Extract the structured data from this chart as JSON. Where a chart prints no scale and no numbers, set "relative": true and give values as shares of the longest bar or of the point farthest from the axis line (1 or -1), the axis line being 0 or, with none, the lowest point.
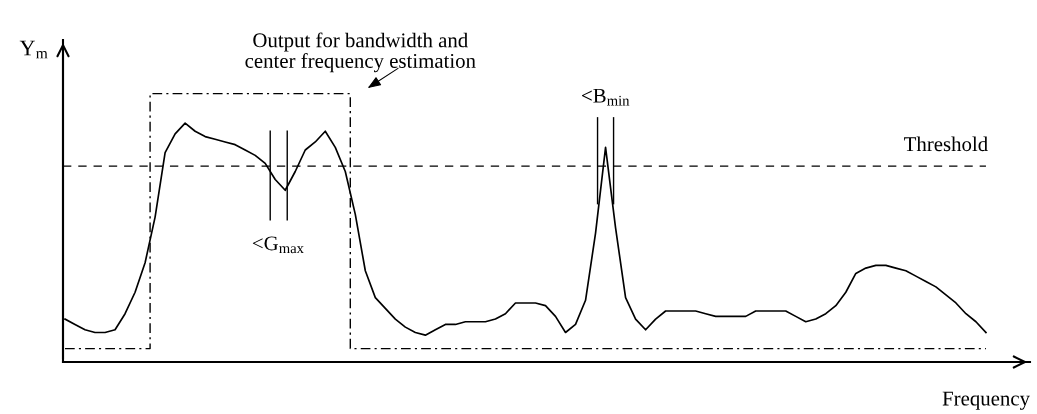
{
  "chart_data": {
    "type": "line",
    "relative": true,
    "ylabel": "Y$_{m}$",
    "xlabel": "Frequency",
    "marker": "none",
    "categories": [
      null,
      null,
      null,
      null,
      null,
      null,
      null,
      null,
      null,
      null,
      null,
      null,
      null,
      null,
      null,
      null,
      null,
      null,
      null,
      null,
      null,
      null,
      null,
      null,
      null,
      null,
      null,
      null,
      null,
      null,
      null,
      null,
      null,
      null,
      null,
      null,
      null,
      null,
      null,
      null,
      null,
      null,
      null,
      null,
      null,
      null,
      null,
      null,
      null,
      null,
      null,
      null,
      null,
      null,
      null,
      null,
      null,
      null,
      null,
      null,
      null,
      null,
      null,
      null,
      null,
      null,
      null,
      null,
      null,
      null,
      null,
      null,
      null,
      null,
      null,
      null,
      null,
      null,
      null,
      null,
      null,
      null,
      null,
      null,
      null,
      null,
      null,
      null,
      null,
      null,
      null,
      null,
      null
    ],
    "series": [
      {
        "color": "#000000",
        "line_style": "solid",
        "values": [
          0.16,
          0.14,
          0.12,
          0.11,
          0.11,
          0.12,
          0.18,
          0.26,
          0.37,
          0.54,
          0.78,
          0.85,
          0.89,
          0.86,
          0.84,
          0.83,
          0.82,
          0.81,
          0.79,
          0.77,
          0.74,
          0.68,
          0.64,
          0.71,
          0.79,
          0.82,
          0.86,
          0.8,
          0.71,
          0.55,
          0.34,
          0.24,
          0.2,
          0.16,
          0.13,
          0.11,
          0.1,
          0.12,
          0.14,
          0.14,
          0.15,
          0.15,
          0.15,
          0.16,
          0.18,
          0.22,
          0.22,
          0.22,
          0.21,
          0.17,
          0.11,
          0.14,
          0.23,
          0.48,
          0.8,
          0.5,
          0.24,
          0.16,
          0.12,
          0.16,
          0.19,
          0.19,
          0.19,
          0.19,
          0.18,
          0.17,
          0.17,
          0.17,
          0.17,
          0.19,
          0.19,
          0.19,
          0.19,
          0.17,
          0.15,
          0.16,
          0.18,
          0.21,
          0.26,
          0.33,
          0.35,
          0.36,
          0.36,
          0.35,
          0.34,
          0.32,
          0.3,
          0.28,
          0.25,
          0.22,
          0.18,
          0.15,
          0.11
        ]
      },
      {
        "type": "step",
        "color": "#000000",
        "line_style": "dashdot",
        "values": [
          0.05,
          0.05,
          0.05,
          0.05,
          0.05,
          0.05,
          0.05,
          0.05,
          0.05,
          1,
          1,
          1,
          1,
          1,
          1,
          1,
          1,
          1,
          1,
          1,
          1,
          1,
          1,
          1,
          1,
          1,
          1,
          1,
          1,
          0.05,
          0.05,
          0.05,
          0.05,
          0.05,
          0.05,
          0.05,
          0.05,
          0.05,
          0.05,
          0.05,
          0.05,
          0.05,
          0.05,
          0.05,
          0.05,
          0.05,
          0.05,
          0.05,
          0.05,
          0.05,
          0.05,
          0.05,
          0.05,
          0.05,
          0.05,
          0.05,
          0.05,
          0.05,
          0.05,
          0.05,
          0.05,
          0.05,
          0.05,
          0.05,
          0.05,
          0.05,
          0.05,
          0.05,
          0.05,
          0.05,
          0.05,
          0.05,
          0.05,
          0.05,
          0.05,
          0.05,
          0.05,
          0.05,
          0.05,
          0.05,
          0.05,
          0.05,
          0.05,
          0.05,
          0.05,
          0.05,
          0.05,
          0.05,
          0.05,
          0.05,
          0.05,
          0.05,
          0.05
        ]
      }
    ],
    "ref_lines": [
      {
        "axis": "y",
        "value": 0.73,
        "label": "Threshold",
        "color": "#000000",
        "line_style": "dashed"
      }
    ],
    "annotations": [
      "Output for bandwidth and\ncenter frequency estimation",
      "<G$_{max}$",
      "<B$_{min}$"
    ]
  }
}
